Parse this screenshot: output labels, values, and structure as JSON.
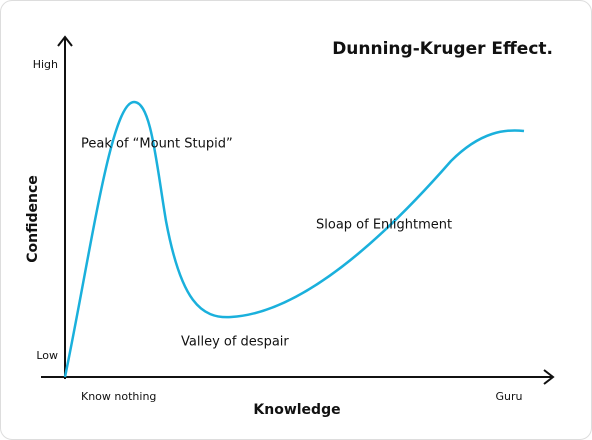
{
  "title": "Dunning-Kruger Effect.",
  "axes": {
    "y_label": "Confidence",
    "x_label": "Knowledge",
    "y_high": "High",
    "y_low": "Low",
    "x_start": "Know nothing",
    "x_end": "Guru"
  },
  "annotations": [
    "Peak of “Mount Stupid”",
    "Valley of despair",
    "Sloap of Enlightment"
  ]
}
